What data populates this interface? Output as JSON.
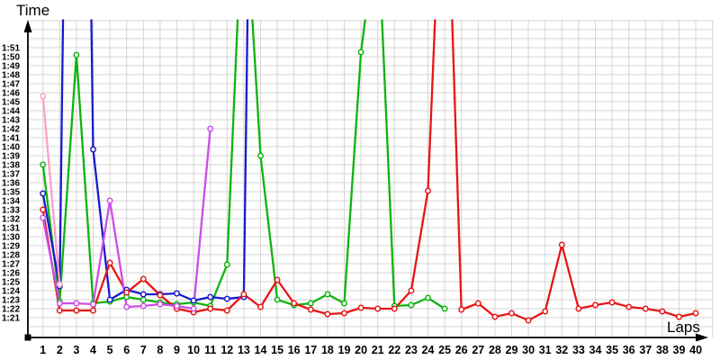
{
  "chart_data": {
    "type": "line",
    "title": "",
    "ylabel": "Time",
    "xlabel": "Laps",
    "grid": true,
    "legend": "none",
    "marker": "open-circle",
    "y_tick_labels": [
      "1:51",
      "1:50",
      "1:49",
      "1:48",
      "1:47",
      "1:46",
      "1:45",
      "1:44",
      "1:43",
      "1:42",
      "1:41",
      "1:40",
      "1:39",
      "1:38",
      "1:37",
      "1:36",
      "1:35",
      "1:34",
      "1:33",
      "1:32",
      "1:31",
      "1:30",
      "1:29",
      "1:28",
      "1:27",
      "1:26",
      "1:25",
      "1:24",
      "1:23",
      "1:22",
      "1:21"
    ],
    "x_tick_labels": [
      "1",
      "2",
      "3",
      "4",
      "5",
      "6",
      "7",
      "8",
      "9",
      "10",
      "11",
      "12",
      "13",
      "14",
      "15",
      "16",
      "17",
      "18",
      "19",
      "20",
      "21",
      "22",
      "23",
      "24",
      "25",
      "26",
      "27",
      "28",
      "29",
      "30",
      "31",
      "32",
      "33",
      "34",
      "35",
      "36",
      "37",
      "38",
      "39",
      "40"
    ],
    "y_axis_seconds_range": [
      81,
      111
    ],
    "x_range": [
      1,
      40
    ],
    "series": [
      {
        "name": "green",
        "color": "#0fb30f",
        "first_lap": 1,
        "lap_times_seconds": [
          98,
          82.8,
          110.2,
          82.6,
          82.8,
          83.3,
          83,
          82.7,
          82.5,
          82.7,
          82.3,
          86.9,
          130,
          99,
          83,
          82.4,
          82.6,
          83.6,
          82.6,
          110.5,
          125,
          82.3,
          82.4,
          83.2,
          82
        ]
      },
      {
        "name": "blue",
        "color": "#1a1acd",
        "first_lap": 1,
        "lap_times_seconds": [
          94.8,
          84.5,
          232,
          99.7,
          83,
          84.1,
          83.6,
          83.6,
          83.7,
          82.9,
          83.3,
          83.1,
          83.3,
          223
        ]
      },
      {
        "name": "red",
        "color": "#e81515",
        "first_lap": 1,
        "lap_times_seconds": [
          93,
          81.8,
          81.8,
          81.8,
          87.1,
          83.8,
          85.3,
          83.5,
          82,
          81.6,
          82,
          81.8,
          83.6,
          82.2,
          85.2,
          82.6,
          81.9,
          81.4,
          81.5,
          82.1,
          82,
          82,
          84,
          95.1,
          140,
          81.9,
          82.6,
          81.1,
          81.5,
          80.7,
          81.7,
          89.1,
          82,
          82.4,
          82.7,
          82.2,
          82,
          81.7,
          81.1,
          81.5
        ]
      },
      {
        "name": "magenta",
        "color": "#cc4de8",
        "first_lap": 1,
        "lap_times_seconds": [
          92.1,
          82.6,
          82.6,
          82.5,
          94,
          82.2,
          82.3,
          82.5,
          82.3,
          82,
          102
        ]
      },
      {
        "name": "pink",
        "color": "#ff9ec5",
        "first_lap": 1,
        "lap_times_seconds": [
          105.6,
          84.7
        ]
      }
    ],
    "offscale_peaks": [
      {
        "series": "blue",
        "lap": 3
      },
      {
        "series": "blue",
        "lap": 14
      },
      {
        "series": "green",
        "lap": 13
      },
      {
        "series": "green",
        "lap": 21
      },
      {
        "series": "red",
        "lap": 25
      }
    ]
  }
}
